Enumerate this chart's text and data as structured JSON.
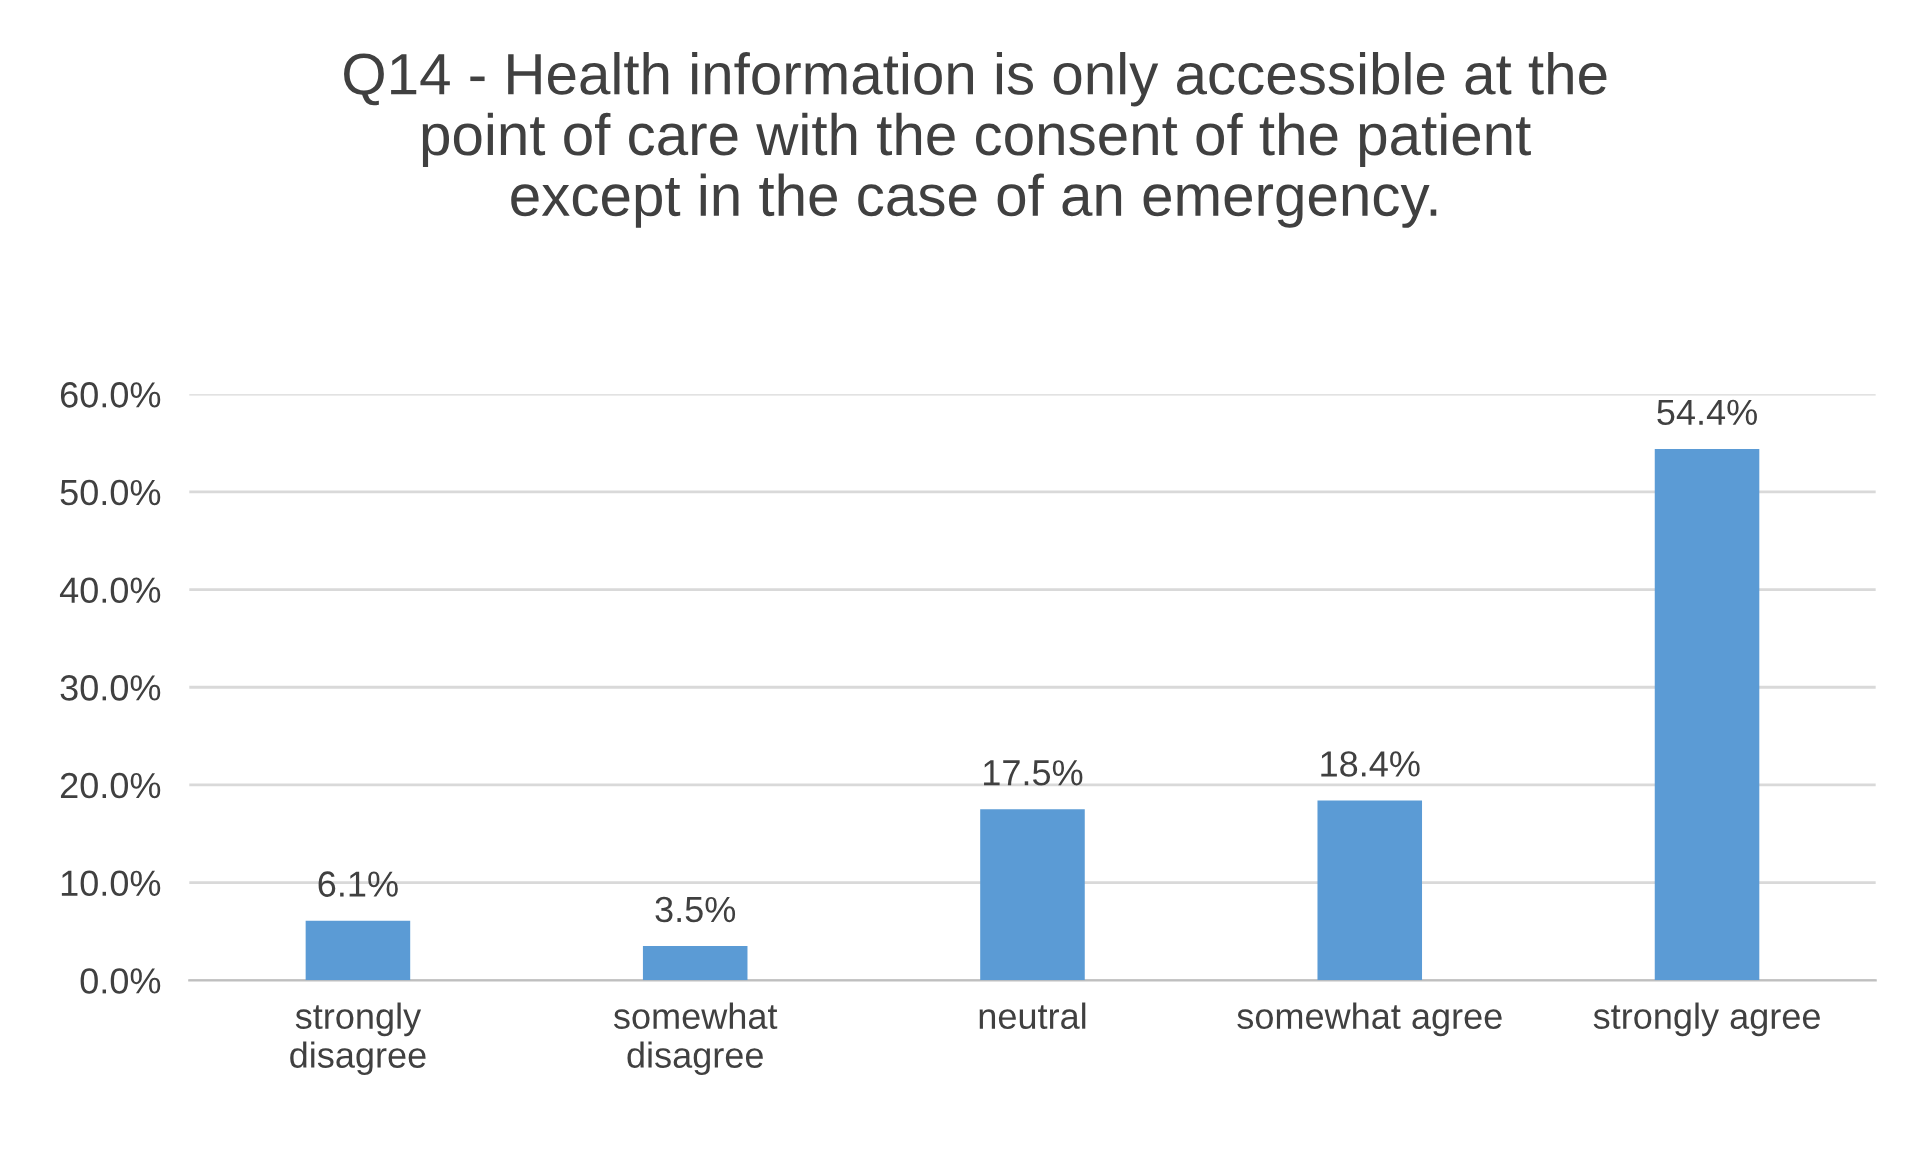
{
  "chart_data": {
    "type": "bar",
    "title": "Q14 - Health information is only accessible at the\npoint of care with the consent of the patient\nexcept in the case of an emergency.",
    "categories": [
      "strongly\ndisagree",
      "somewhat\ndisagree",
      "neutral",
      "somewhat agree",
      "strongly agree"
    ],
    "values": [
      6.1,
      3.5,
      17.5,
      18.4,
      54.4
    ],
    "color": "#5b9bd5",
    "value_labels": [
      "6.1%",
      "3.5%",
      "17.5%",
      "18.4%",
      "54.4%"
    ],
    "ylim": [
      0,
      60
    ],
    "yticks": [
      {
        "value": 0,
        "label": "0.0%"
      },
      {
        "value": 10,
        "label": "10.0%"
      },
      {
        "value": 20,
        "label": "20.0%"
      },
      {
        "value": 30,
        "label": "30.0%"
      },
      {
        "value": 40,
        "label": "40.0%"
      },
      {
        "value": 50,
        "label": "50.0%"
      },
      {
        "value": 60,
        "label": "60.0%"
      }
    ],
    "grid": "y",
    "legend": false
  }
}
